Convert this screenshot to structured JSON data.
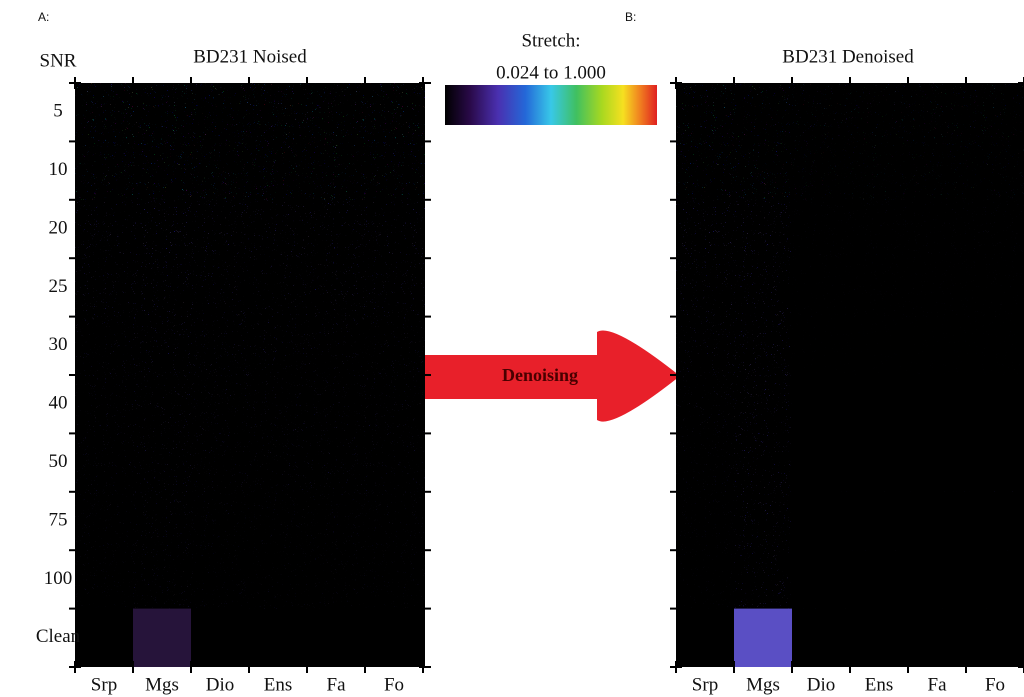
{
  "panel_a": {
    "label": "A:",
    "title": "BD231 Noised"
  },
  "panel_b": {
    "label": "B:",
    "title": "BD231 Denoised"
  },
  "row_axis_title": "SNR",
  "rows": [
    "5",
    "10",
    "20",
    "25",
    "30",
    "40",
    "50",
    "75",
    "100",
    "Clean"
  ],
  "columns": [
    "Srp",
    "Mgs",
    "Dio",
    "Ens",
    "Fa",
    "Fo"
  ],
  "colorbar": {
    "title": "Stretch:",
    "range": "0.024 to 1.000"
  },
  "arrow": {
    "label": "Denoising"
  }
}
